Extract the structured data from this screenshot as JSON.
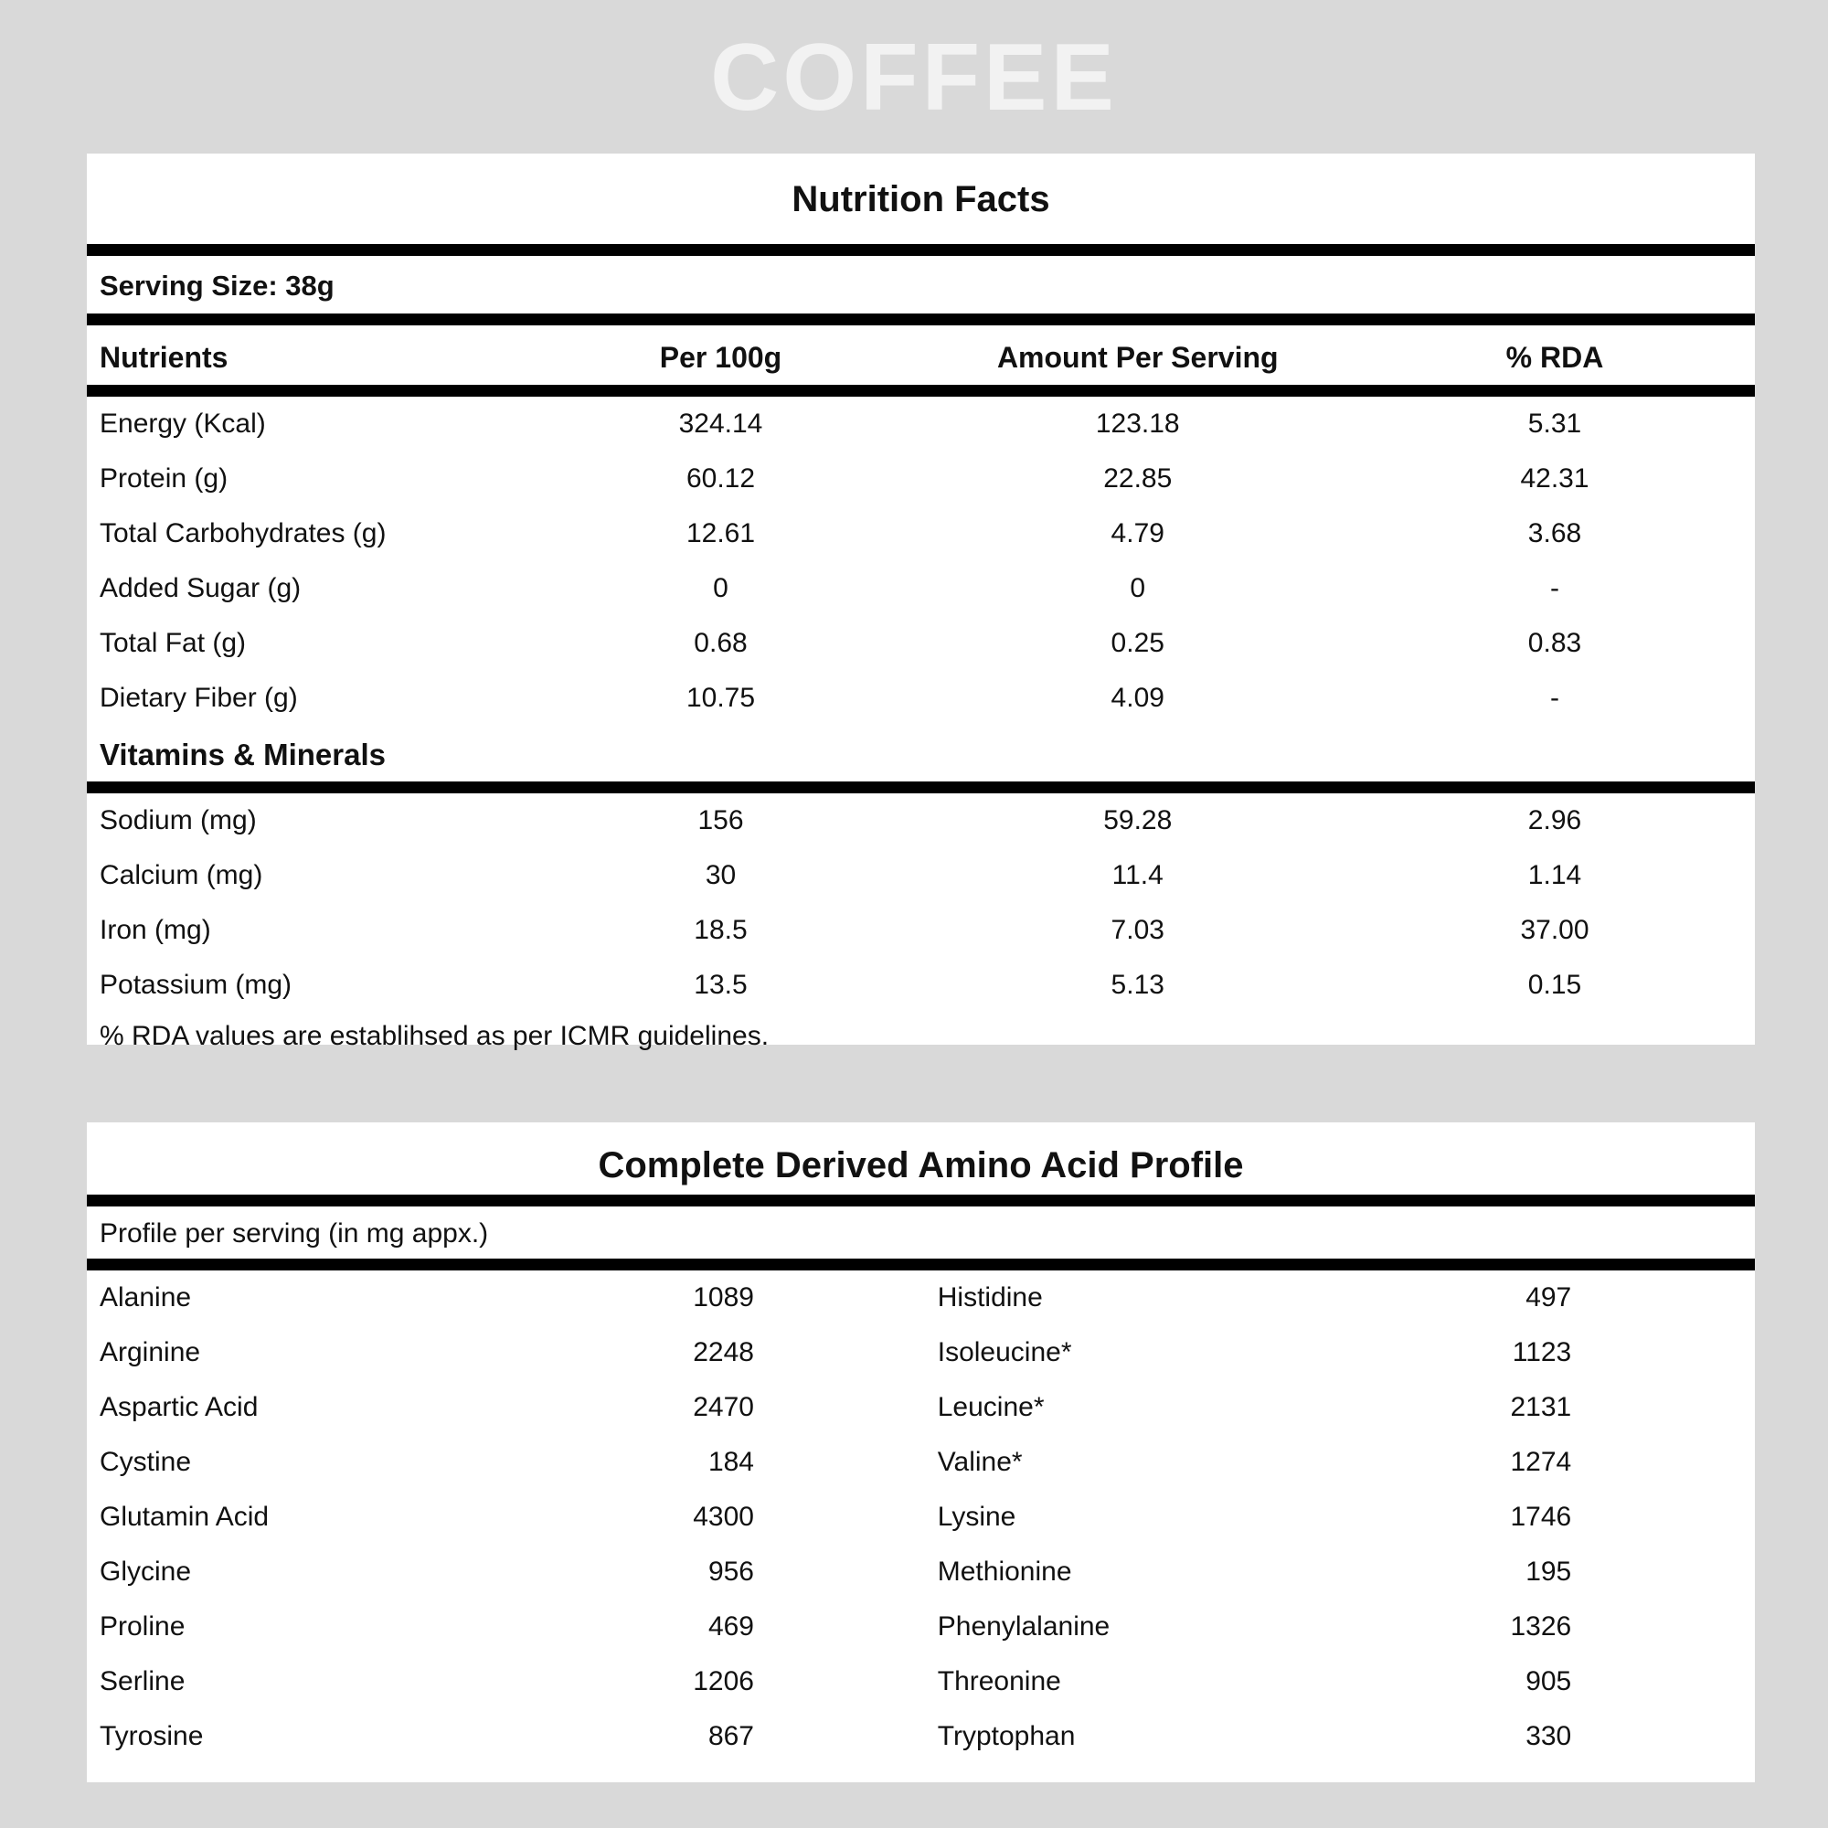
{
  "page": {
    "title": "COFFEE",
    "colors": {
      "background": "#d9d9d9",
      "card": "#ffffff",
      "text": "#111111",
      "page_title": "#f2f2f2",
      "divider": "#000000"
    }
  },
  "nutrition_facts": {
    "title": "Nutrition Facts",
    "serving_size": "Serving Size: 38g",
    "columns": [
      "Nutrients",
      "Per 100g",
      "Amount Per Serving",
      "% RDA"
    ],
    "rows": [
      {
        "name": "Energy (Kcal)",
        "per100g": "324.14",
        "per_serving": "123.18",
        "rda": "5.31"
      },
      {
        "name": "Protein (g)",
        "per100g": "60.12",
        "per_serving": "22.85",
        "rda": "42.31"
      },
      {
        "name": "Total Carbohydrates (g)",
        "per100g": "12.61",
        "per_serving": "4.79",
        "rda": "3.68"
      },
      {
        "name": "Added Sugar (g)",
        "per100g": "0",
        "per_serving": "0",
        "rda": "-"
      },
      {
        "name": "Total Fat (g)",
        "per100g": "0.68",
        "per_serving": "0.25",
        "rda": "0.83"
      },
      {
        "name": "Dietary Fiber (g)",
        "per100g": "10.75",
        "per_serving": "4.09",
        "rda": "-"
      }
    ],
    "section_header": "Vitamins & Minerals",
    "mineral_rows": [
      {
        "name": "Sodium (mg)",
        "per100g": "156",
        "per_serving": "59.28",
        "rda": "2.96"
      },
      {
        "name": "Calcium (mg)",
        "per100g": "30",
        "per_serving": "11.4",
        "rda": "1.14"
      },
      {
        "name": "Iron (mg)",
        "per100g": "18.5",
        "per_serving": "7.03",
        "rda": "37.00"
      },
      {
        "name": "Potassium (mg)",
        "per100g": "13.5",
        "per_serving": "5.13",
        "rda": "0.15"
      }
    ],
    "footnote": "% RDA values are establihsed as per ICMR guidelines."
  },
  "amino_profile": {
    "title": "Complete Derived Amino Acid Profile",
    "subtitle": "Profile per serving (in mg appx.)",
    "rows": [
      {
        "left_name": "Alanine",
        "left_value": "1089",
        "right_name": "Histidine",
        "right_value": "497"
      },
      {
        "left_name": "Arginine",
        "left_value": "2248",
        "right_name": "Isoleucine*",
        "right_value": "1123"
      },
      {
        "left_name": "Aspartic Acid",
        "left_value": "2470",
        "right_name": "Leucine*",
        "right_value": "2131"
      },
      {
        "left_name": "Cystine",
        "left_value": "184",
        "right_name": "Valine*",
        "right_value": "1274"
      },
      {
        "left_name": "Glutamin Acid",
        "left_value": "4300",
        "right_name": "Lysine",
        "right_value": "1746"
      },
      {
        "left_name": "Glycine",
        "left_value": "956",
        "right_name": "Methionine",
        "right_value": "195"
      },
      {
        "left_name": "Proline",
        "left_value": "469",
        "right_name": "Phenylalanine",
        "right_value": "1326"
      },
      {
        "left_name": "Serline",
        "left_value": "1206",
        "right_name": "Threonine",
        "right_value": "905"
      },
      {
        "left_name": "Tyrosine",
        "left_value": "867",
        "right_name": "Tryptophan",
        "right_value": "330"
      }
    ]
  }
}
